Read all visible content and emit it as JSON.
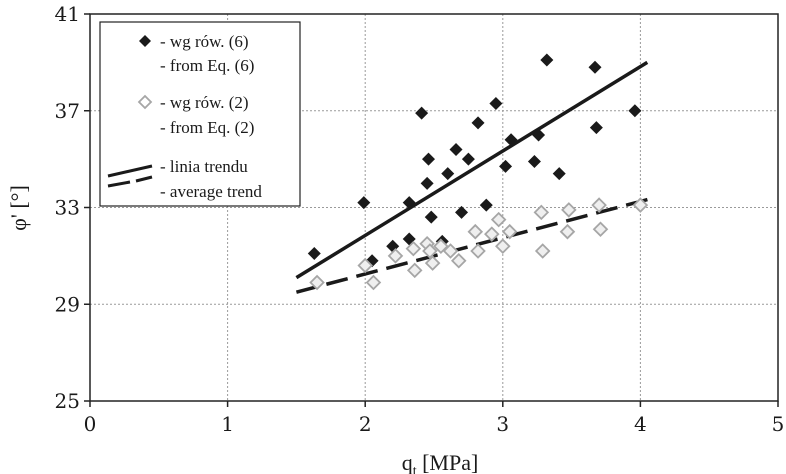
{
  "chart_data": {
    "type": "scatter",
    "xlabel": "q",
    "xlabel_sub": "t",
    "xlabel_unit": " [MPa]",
    "ylabel": "φ' [°]",
    "xlim": [
      0,
      5
    ],
    "ylim": [
      25,
      41
    ],
    "x_ticks": [
      0,
      1,
      2,
      3,
      4,
      5
    ],
    "y_ticks": [
      25,
      29,
      33,
      37,
      41
    ],
    "grid": true,
    "legend_position": "top-left",
    "series": [
      {
        "marker": "filled-diamond",
        "color": "#1a1a1a",
        "legend": [
          "- wg rów. (6)",
          "- from Eq. (6)"
        ],
        "points": [
          [
            1.63,
            31.1
          ],
          [
            1.99,
            33.2
          ],
          [
            2.05,
            30.8
          ],
          [
            2.2,
            31.4
          ],
          [
            2.32,
            33.2
          ],
          [
            2.32,
            31.7
          ],
          [
            2.41,
            36.9
          ],
          [
            2.45,
            34.0
          ],
          [
            2.46,
            35.0
          ],
          [
            2.48,
            32.6
          ],
          [
            2.56,
            31.6
          ],
          [
            2.6,
            34.4
          ],
          [
            2.66,
            35.4
          ],
          [
            2.7,
            32.8
          ],
          [
            2.75,
            35.0
          ],
          [
            2.82,
            36.5
          ],
          [
            2.88,
            33.1
          ],
          [
            2.95,
            37.3
          ],
          [
            3.02,
            34.7
          ],
          [
            3.06,
            35.8
          ],
          [
            3.23,
            34.9
          ],
          [
            3.26,
            36.0
          ],
          [
            3.32,
            39.1
          ],
          [
            3.41,
            34.4
          ],
          [
            3.67,
            38.8
          ],
          [
            3.68,
            36.3
          ],
          [
            3.96,
            37.0
          ]
        ]
      },
      {
        "marker": "open-diamond",
        "color": "#a6a6a6",
        "legend": [
          "- wg rów. (2)",
          "- from Eq. (2)"
        ],
        "points": [
          [
            1.65,
            29.9
          ],
          [
            2.0,
            30.6
          ],
          [
            2.06,
            29.9
          ],
          [
            2.22,
            31.0
          ],
          [
            2.35,
            31.3
          ],
          [
            2.36,
            30.4
          ],
          [
            2.45,
            31.5
          ],
          [
            2.47,
            31.2
          ],
          [
            2.49,
            30.7
          ],
          [
            2.55,
            31.4
          ],
          [
            2.62,
            31.2
          ],
          [
            2.68,
            30.8
          ],
          [
            2.8,
            32.0
          ],
          [
            2.82,
            31.2
          ],
          [
            2.92,
            31.9
          ],
          [
            2.97,
            32.5
          ],
          [
            3.0,
            31.4
          ],
          [
            3.05,
            32.0
          ],
          [
            3.28,
            32.8
          ],
          [
            3.29,
            31.2
          ],
          [
            3.47,
            32.0
          ],
          [
            3.48,
            32.9
          ],
          [
            3.7,
            33.1
          ],
          [
            3.71,
            32.1
          ],
          [
            4.0,
            33.1
          ]
        ]
      }
    ],
    "trend_lines": [
      {
        "style": "solid",
        "from": [
          1.5,
          30.1
        ],
        "to": [
          4.05,
          39.0
        ]
      },
      {
        "style": "dashed",
        "from": [
          1.5,
          29.5
        ],
        "to": [
          4.1,
          33.4
        ]
      }
    ],
    "trend_legend": [
      "- linia trendu",
      "- average trend"
    ]
  }
}
